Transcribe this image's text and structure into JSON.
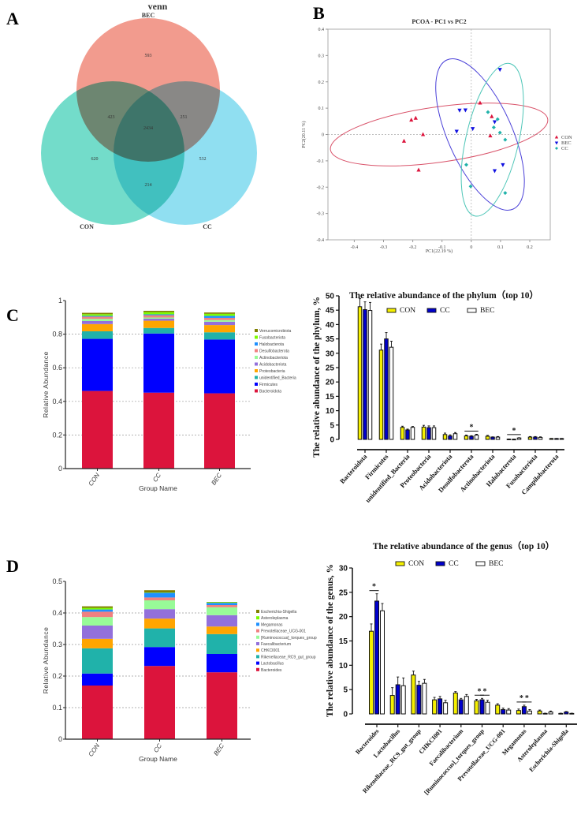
{
  "panels": {
    "a": "A",
    "b": "B",
    "c": "C",
    "d": "D"
  },
  "chart_data": [
    {
      "id": "venn",
      "type": "venn",
      "title": "venn",
      "sets": [
        "BEC",
        "CON",
        "CC"
      ],
      "regions": {
        "BEC_only": "593",
        "CON_only": "620",
        "CC_only": "532",
        "BEC_CON": "423",
        "BEC_CC": "251",
        "CON_CC": "214",
        "all": "2434"
      },
      "colors": {
        "BEC": "#f08a7a",
        "CON": "#5ad6c1",
        "CC": "#7dd9ef"
      }
    },
    {
      "id": "pcoa",
      "type": "scatter",
      "title": "PCOA - PC1 vs PC2",
      "xlabel": "PC1(22.19 %)",
      "ylabel": "PC2(20.11 %)",
      "xlim": [
        -0.49,
        0.27
      ],
      "ylim": [
        -0.4,
        0.4
      ],
      "xticks": [
        "-0.4",
        "-0.3",
        "-0.2",
        "-0.1",
        "0",
        "0.1",
        "0.2"
      ],
      "yticks": [
        "0.4",
        "0.3",
        "0.2",
        "0.1",
        "0",
        "-0.1",
        "-0.2",
        "-0.3",
        "-0.4"
      ],
      "legend_position": "right",
      "series": [
        {
          "name": "CON",
          "color": "#dc143c",
          "marker": "triangle-up",
          "points": [
            [
              -0.23,
              -0.025
            ],
            [
              -0.205,
              0.055
            ],
            [
              -0.19,
              0.062
            ],
            [
              -0.165,
              0.0
            ],
            [
              -0.18,
              -0.135
            ],
            [
              0.03,
              0.12
            ],
            [
              0.07,
              0.068
            ],
            [
              0.065,
              -0.005
            ]
          ],
          "ellipse": {
            "cx": -0.11,
            "cy": 0.0,
            "rx": 0.375,
            "ry": 0.105,
            "angle": -8,
            "color": "#d9536a"
          }
        },
        {
          "name": "BEC",
          "color": "#1010e0",
          "marker": "triangle-down",
          "points": [
            [
              -0.04,
              0.092
            ],
            [
              -0.02,
              0.093
            ],
            [
              -0.05,
              0.012
            ],
            [
              0.005,
              0.022
            ],
            [
              0.08,
              0.048
            ],
            [
              0.098,
              0.247
            ],
            [
              0.08,
              -0.138
            ],
            [
              0.108,
              -0.115
            ]
          ],
          "ellipse": {
            "cx": 0.03,
            "cy": 0.0,
            "rx": 0.11,
            "ry": 0.31,
            "angle": -24,
            "color": "#4a40d8"
          }
        },
        {
          "name": "CC",
          "color": "#20b2aa",
          "marker": "diamond",
          "points": [
            [
              0.057,
              0.085
            ],
            [
              0.09,
              0.058
            ],
            [
              0.077,
              0.027
            ],
            [
              0.098,
              0.007
            ],
            [
              0.116,
              -0.02
            ],
            [
              -0.017,
              -0.115
            ],
            [
              -0.002,
              -0.197
            ],
            [
              0.116,
              -0.222
            ]
          ],
          "ellipse": {
            "cx": 0.072,
            "cy": -0.02,
            "rx": 0.09,
            "ry": 0.297,
            "angle": 13,
            "color": "#4fc6b8"
          }
        }
      ]
    },
    {
      "id": "phylum-stacked",
      "type": "bar",
      "stacked": true,
      "xlabel": "Group Name",
      "ylabel": "Relative Abundance",
      "ylim": [
        0,
        1
      ],
      "yticks": [
        "0",
        "0.2",
        "0.4",
        "0.6",
        "0.8",
        "1"
      ],
      "categories": [
        "CON",
        "CC",
        "BEC"
      ],
      "legend_position": "right",
      "series": [
        {
          "name": "Bacteroidota",
          "color": "#dc143c",
          "values": [
            0.462,
            0.452,
            0.448
          ]
        },
        {
          "name": "Firmicutes",
          "color": "#0000ff",
          "values": [
            0.31,
            0.352,
            0.32
          ]
        },
        {
          "name": "unidentified_Bacteria",
          "color": "#20b2aa",
          "values": [
            0.045,
            0.033,
            0.043
          ]
        },
        {
          "name": "Proteobacteria",
          "color": "#ffa500",
          "values": [
            0.043,
            0.043,
            0.043
          ]
        },
        {
          "name": "Acidobacteriota",
          "color": "#9370db",
          "values": [
            0.018,
            0.012,
            0.02
          ]
        },
        {
          "name": "Actinobacteriota",
          "color": "#98fb98",
          "values": [
            0.013,
            0.007,
            0.01
          ]
        },
        {
          "name": "Desulfobacterota",
          "color": "#f08080",
          "values": [
            0.013,
            0.014,
            0.013
          ]
        },
        {
          "name": "Halobacterota",
          "color": "#1e90ff",
          "values": [
            0.005,
            0.005,
            0.012
          ]
        },
        {
          "name": "Fusobacteriota",
          "color": "#7cfc00",
          "values": [
            0.01,
            0.013,
            0.012
          ]
        },
        {
          "name": "Verrucomicrobiota",
          "color": "#808000",
          "values": [
            0.008,
            0.008,
            0.008
          ]
        }
      ]
    },
    {
      "id": "phylum-grouped",
      "type": "bar",
      "title": "The relative abundance of the phylum（top 10）",
      "ylabel": "The relative abundance of the phylum, %",
      "ylim": [
        0,
        50
      ],
      "yticks": [
        "0",
        "5",
        "10",
        "15",
        "20",
        "25",
        "30",
        "35",
        "40",
        "45",
        "50"
      ],
      "categories": [
        "Bacteroidota",
        "Firmicutes",
        "unidentified_Bacteria",
        "Proteobacteria",
        "Acidobacteriota",
        "Desulfobacterota",
        "Actinobacteriota",
        "Halobacterota",
        "Fusobacteriota",
        "Campilobacterota"
      ],
      "legend_position": "top",
      "series": [
        {
          "name": "CON",
          "color": "#f5f000",
          "values": [
            46.2,
            31.1,
            4.2,
            4.3,
            1.7,
            1.2,
            1.1,
            0.1,
            0.8,
            0.3
          ],
          "errors": [
            2.8,
            2.1,
            0.4,
            0.6,
            0.5,
            0.3,
            0.3,
            0.05,
            0.2,
            0.05
          ]
        },
        {
          "name": "CC",
          "color": "#0000cc",
          "values": [
            45.2,
            35.0,
            3.3,
            4.1,
            1.2,
            1.1,
            0.8,
            0.05,
            0.8,
            0.3
          ],
          "errors": [
            2.7,
            2.2,
            0.3,
            0.6,
            0.4,
            0.2,
            0.1,
            0.05,
            0.2,
            0.05
          ]
        },
        {
          "name": "BEC",
          "color": "#ffffff",
          "values": [
            44.9,
            32.1,
            4.2,
            4.1,
            2.0,
            1.5,
            0.8,
            0.5,
            0.7,
            0.3
          ],
          "errors": [
            2.8,
            2.1,
            0.3,
            0.6,
            0.4,
            0.3,
            0.2,
            0.1,
            0.2,
            0.05
          ]
        }
      ],
      "significance": [
        {
          "category": 5,
          "from": 0,
          "to": 2,
          "label": "*"
        },
        {
          "category": 7,
          "from": 0,
          "to": 2,
          "label": "*"
        }
      ]
    },
    {
      "id": "genus-stacked",
      "type": "bar",
      "stacked": true,
      "xlabel": "Group Name",
      "ylabel": "Relative Abundance",
      "ylim": [
        0,
        0.5
      ],
      "yticks": [
        "0",
        "0.1",
        "0.2",
        "0.3",
        "0.4",
        "0.5"
      ],
      "categories": [
        "CON",
        "CC",
        "BEC"
      ],
      "legend_position": "right",
      "series": [
        {
          "name": "Bacteroides",
          "color": "#dc143c",
          "values": [
            0.17,
            0.232,
            0.212
          ]
        },
        {
          "name": "Lactobacillus",
          "color": "#0000ff",
          "values": [
            0.038,
            0.06,
            0.058
          ]
        },
        {
          "name": "Rikenellaceae_RC9_gut_group",
          "color": "#20b2aa",
          "values": [
            0.08,
            0.059,
            0.063
          ]
        },
        {
          "name": "CHKCI001",
          "color": "#ffa500",
          "values": [
            0.03,
            0.031,
            0.024
          ]
        },
        {
          "name": "Faecalibacterium",
          "color": "#9370db",
          "values": [
            0.042,
            0.03,
            0.036
          ]
        },
        {
          "name": "[Ruminococcus]_torques_group",
          "color": "#98fb98",
          "values": [
            0.027,
            0.028,
            0.025
          ]
        },
        {
          "name": "Prevotellaceae_UCG-001",
          "color": "#f08080",
          "values": [
            0.017,
            0.009,
            0.007
          ]
        },
        {
          "name": "Megamonas",
          "color": "#1e90ff",
          "values": [
            0.007,
            0.015,
            0.007
          ]
        },
        {
          "name": "Asteroleplasma",
          "color": "#7cfc00",
          "values": [
            0.005,
            0.001,
            0.002
          ]
        },
        {
          "name": "Escherichia-Shigella",
          "color": "#808000",
          "values": [
            0.005,
            0.007,
            0.001
          ]
        }
      ]
    },
    {
      "id": "genus-grouped",
      "type": "bar",
      "title": "The relative abundance of the genus（top 10）",
      "ylabel": "The relative abundance of the genus, %",
      "ylim": [
        0,
        30
      ],
      "yticks": [
        "0",
        "5",
        "10",
        "15",
        "20",
        "25",
        "30"
      ],
      "categories": [
        "Bacteroides",
        "Lactobacillus",
        "Rikenellaceae_RC9_gut_group",
        "CHKCI001",
        "Faecalibacterium",
        "[Ruminococcus]_torques_group",
        "Prevotellaceae_UCG-001",
        "Megamonas",
        "Asteroleplasma",
        "Escherichia-Shigella"
      ],
      "legend_position": "top",
      "series": [
        {
          "name": "CON",
          "color": "#f5f000",
          "values": [
            17.0,
            3.8,
            8.0,
            2.9,
            4.3,
            2.7,
            1.8,
            0.7,
            0.6,
            0.1
          ],
          "errors": [
            1.5,
            1.6,
            0.8,
            0.5,
            0.3,
            0.3,
            0.3,
            0.3,
            0.2,
            0.05
          ]
        },
        {
          "name": "CC",
          "color": "#0000cc",
          "values": [
            23.2,
            6.0,
            5.9,
            3.1,
            2.9,
            2.9,
            0.9,
            1.5,
            0.1,
            0.4
          ],
          "errors": [
            1.5,
            1.6,
            0.8,
            0.5,
            0.3,
            0.3,
            0.3,
            0.3,
            0.05,
            0.1
          ]
        },
        {
          "name": "BEC",
          "color": "#ffffff",
          "values": [
            21.2,
            5.8,
            6.3,
            2.3,
            3.6,
            2.4,
            0.8,
            0.6,
            0.4,
            0.1
          ],
          "errors": [
            1.5,
            1.6,
            0.8,
            0.5,
            0.4,
            0.4,
            0.3,
            0.3,
            0.2,
            0.05
          ]
        }
      ],
      "significance": [
        {
          "category": 0,
          "from": 0,
          "to": 1,
          "label": "*"
        },
        {
          "category": 5,
          "from": 0,
          "to": 1,
          "label": "*"
        },
        {
          "category": 5,
          "from": 1,
          "to": 2,
          "label": "*"
        },
        {
          "category": 7,
          "from": 0,
          "to": 1,
          "label": "*"
        },
        {
          "category": 7,
          "from": 1,
          "to": 2,
          "label": "*"
        }
      ]
    }
  ]
}
